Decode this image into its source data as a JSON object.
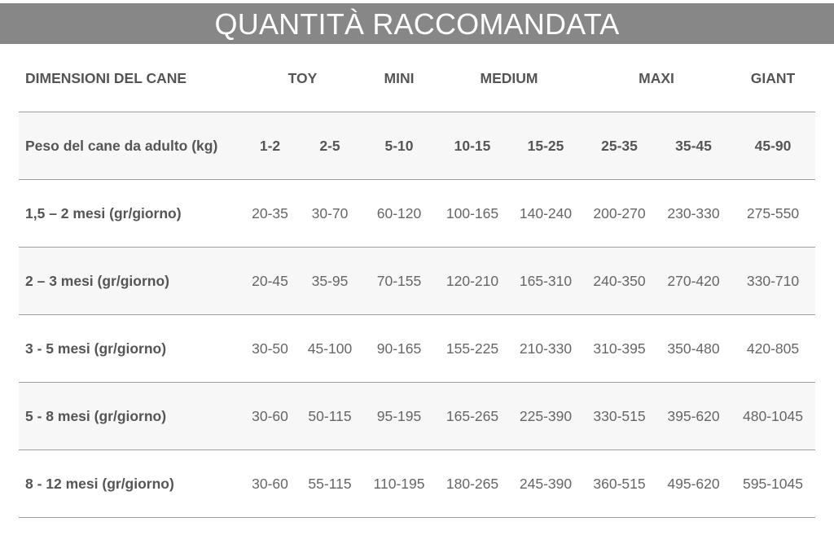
{
  "title": "QUANTITÀ RACCOMANDATA",
  "header": {
    "label": "DIMENSIONI DEL CANE",
    "groups": [
      "TOY",
      "MINI",
      "MEDIUM",
      "MAXI",
      "GIANT"
    ]
  },
  "weight_row": {
    "label": "Peso del cane da adulto (kg)",
    "values": [
      "1-2",
      "2-5",
      "5-10",
      "10-15",
      "15-25",
      "25-35",
      "35-45",
      "45-90"
    ]
  },
  "rows": [
    {
      "label": "1,5 – 2 mesi (gr/giorno)",
      "values": [
        "20-35",
        "30-70",
        "60-120",
        "100-165",
        "140-240",
        "200-270",
        "230-330",
        "275-550"
      ]
    },
    {
      "label": "2 – 3 mesi (gr/giorno)",
      "values": [
        "20-45",
        "35-95",
        "70-155",
        "120-210",
        "165-310",
        "240-350",
        "270-420",
        "330-710"
      ]
    },
    {
      "label": "3 - 5 mesi (gr/giorno)",
      "values": [
        "30-50",
        "45-100",
        "90-165",
        "155-225",
        "210-330",
        "310-395",
        "350-480",
        "420-805"
      ]
    },
    {
      "label": "5 - 8 mesi (gr/giorno)",
      "values": [
        "30-60",
        "50-115",
        "95-195",
        "165-265",
        "225-390",
        "330-515",
        "395-620",
        "480-1045"
      ]
    },
    {
      "label": "8 - 12 mesi (gr/giorno)",
      "values": [
        "30-60",
        "55-115",
        "110-195",
        "180-265",
        "245-390",
        "360-515",
        "495-620",
        "595-1045"
      ]
    }
  ],
  "colors": {
    "banner": "#878787",
    "alt_row": "#f7f7f7",
    "text": "#666666"
  }
}
